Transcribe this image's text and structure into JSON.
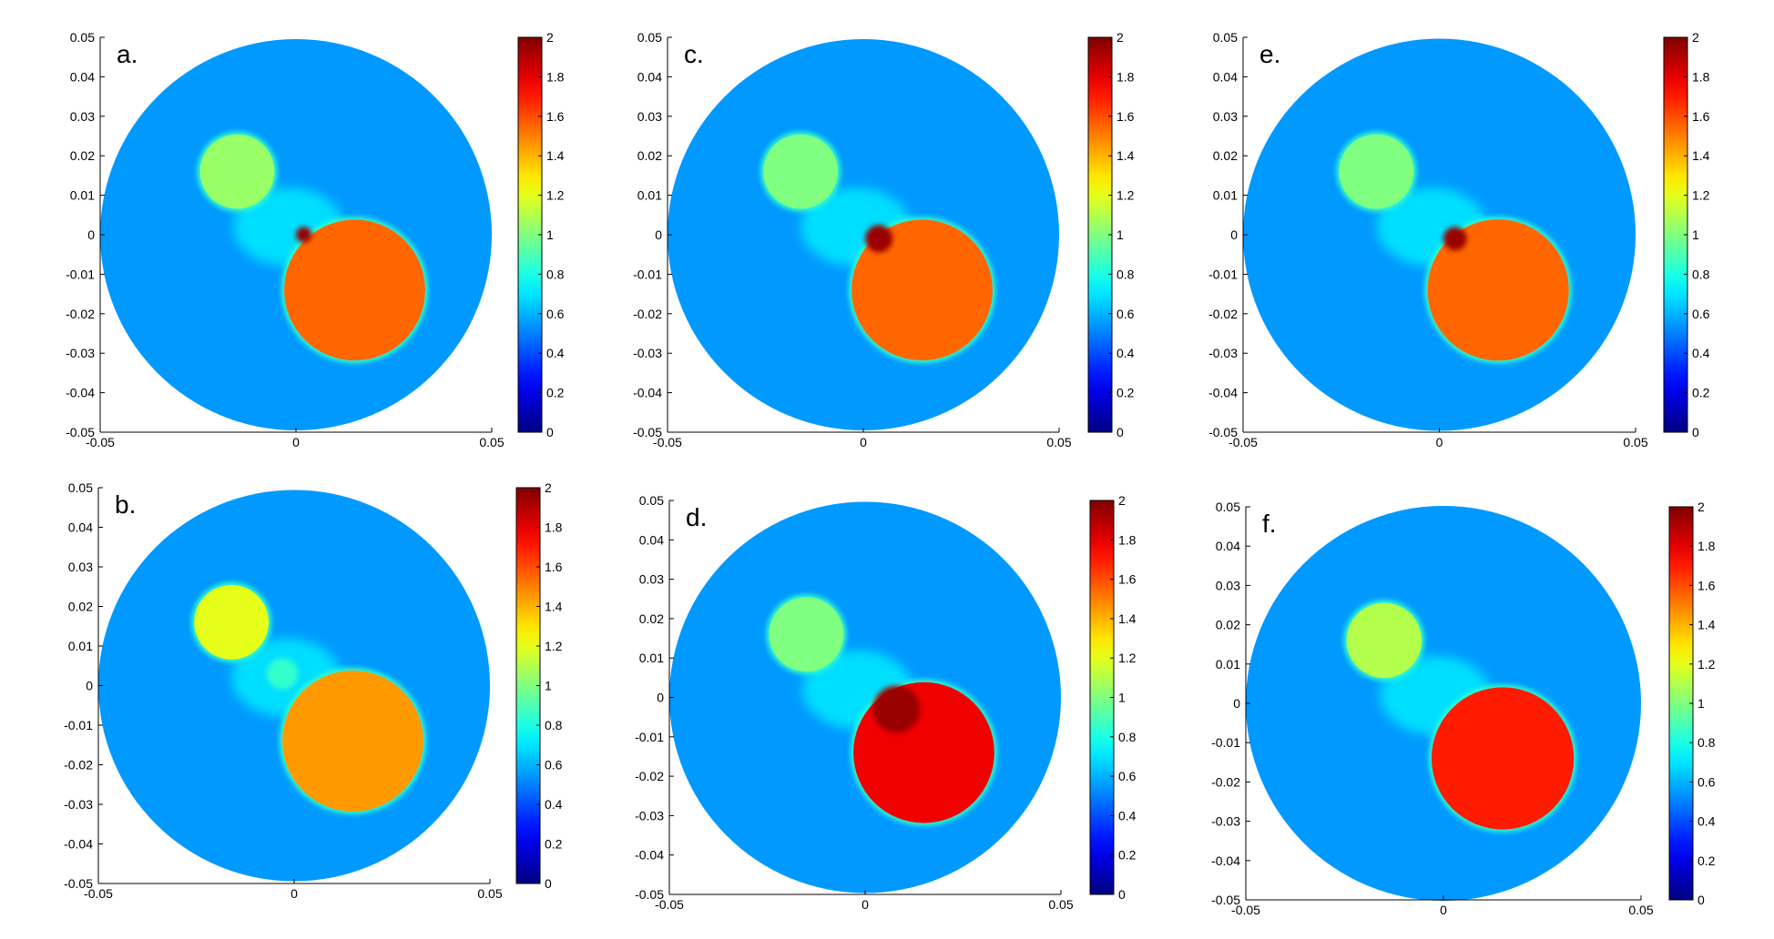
{
  "chart_data": [
    {
      "type": "heatmap",
      "panel_label": "a.",
      "xlim": [
        -0.05,
        0.05
      ],
      "ylim": [
        -0.05,
        0.05
      ],
      "x_ticks": [
        "-0.05",
        "0",
        "0.05"
      ],
      "y_ticks": [
        "0.05",
        "0.04",
        "0.03",
        "0.02",
        "0.01",
        "0",
        "-0.01",
        "-0.02",
        "-0.03",
        "-0.04",
        "-0.05"
      ],
      "colorbar": {
        "min": 0,
        "max": 2,
        "ticks": [
          "2",
          "1.8",
          "1.6",
          "1.4",
          "1.2",
          "1",
          "0.8",
          "0.6",
          "0.4",
          "0.2",
          "0"
        ]
      },
      "background_value": 0.55,
      "inclusions": [
        {
          "cx": -0.015,
          "cy": 0.016,
          "r": 0.0095,
          "value": 1.05
        },
        {
          "cx": 0.015,
          "cy": -0.014,
          "r": 0.018,
          "value": 1.55
        }
      ],
      "artifact": {
        "cx": 0.002,
        "cy": 0.0,
        "r": 0.002,
        "value": 1.95
      }
    },
    {
      "type": "heatmap",
      "panel_label": "b.",
      "xlim": [
        -0.05,
        0.05
      ],
      "ylim": [
        -0.05,
        0.05
      ],
      "x_ticks": [
        "-0.05",
        "0",
        "0.05"
      ],
      "y_ticks": [
        "0.05",
        "0.04",
        "0.03",
        "0.02",
        "0.01",
        "0",
        "-0.01",
        "-0.02",
        "-0.03",
        "-0.04",
        "-0.05"
      ],
      "colorbar": {
        "min": 0,
        "max": 2,
        "ticks": [
          "2",
          "1.8",
          "1.6",
          "1.4",
          "1.2",
          "1",
          "0.8",
          "0.6",
          "0.4",
          "0.2",
          "0"
        ]
      },
      "background_value": 0.55,
      "inclusions": [
        {
          "cx": -0.016,
          "cy": 0.016,
          "r": 0.0095,
          "value": 1.2
        },
        {
          "cx": 0.015,
          "cy": -0.014,
          "r": 0.018,
          "value": 1.45
        }
      ],
      "artifact": {
        "cx": -0.003,
        "cy": 0.003,
        "r": 0.004,
        "value": 0.85
      }
    },
    {
      "type": "heatmap",
      "panel_label": "c.",
      "xlim": [
        -0.05,
        0.05
      ],
      "ylim": [
        -0.05,
        0.05
      ],
      "x_ticks": [
        "-0.05",
        "0",
        "0.05"
      ],
      "y_ticks": [
        "0.05",
        "0.04",
        "0.03",
        "0.02",
        "0.01",
        "0",
        "-0.01",
        "-0.02",
        "-0.03",
        "-0.04",
        "-0.05"
      ],
      "colorbar": {
        "min": 0,
        "max": 2,
        "ticks": [
          "2",
          "1.8",
          "1.6",
          "1.4",
          "1.2",
          "1",
          "0.8",
          "0.6",
          "0.4",
          "0.2",
          "0"
        ]
      },
      "background_value": 0.55,
      "inclusions": [
        {
          "cx": -0.016,
          "cy": 0.016,
          "r": 0.0095,
          "value": 1.0
        },
        {
          "cx": 0.015,
          "cy": -0.014,
          "r": 0.018,
          "value": 1.55
        }
      ],
      "artifact": {
        "cx": 0.004,
        "cy": -0.001,
        "r": 0.0035,
        "value": 1.95
      }
    },
    {
      "type": "heatmap",
      "panel_label": "d.",
      "xlim": [
        -0.05,
        0.05
      ],
      "ylim": [
        -0.05,
        0.05
      ],
      "x_ticks": [
        "-0.05",
        "0",
        "0.05"
      ],
      "y_ticks": [
        "0.05",
        "0.04",
        "0.03",
        "0.02",
        "0.01",
        "0",
        "-0.01",
        "-0.02",
        "-0.03",
        "-0.04",
        "-0.05"
      ],
      "colorbar": {
        "min": 0,
        "max": 2,
        "ticks": [
          "2",
          "1.8",
          "1.6",
          "1.4",
          "1.2",
          "1",
          "0.8",
          "0.6",
          "0.4",
          "0.2",
          "0"
        ]
      },
      "background_value": 0.55,
      "inclusions": [
        {
          "cx": -0.015,
          "cy": 0.016,
          "r": 0.0095,
          "value": 1.0
        },
        {
          "cx": 0.015,
          "cy": -0.014,
          "r": 0.018,
          "value": 1.78
        }
      ],
      "artifact": {
        "cx": 0.008,
        "cy": -0.003,
        "r": 0.006,
        "value": 1.95
      }
    },
    {
      "type": "heatmap",
      "panel_label": "e.",
      "xlim": [
        -0.05,
        0.05
      ],
      "ylim": [
        -0.05,
        0.05
      ],
      "x_ticks": [
        "-0.05",
        "0",
        "0.05"
      ],
      "y_ticks": [
        "0.05",
        "0.04",
        "0.03",
        "0.02",
        "0.01",
        "0",
        "-0.01",
        "-0.02",
        "-0.03",
        "-0.04",
        "-0.05"
      ],
      "colorbar": {
        "min": 0,
        "max": 2,
        "ticks": [
          "2",
          "1.8",
          "1.6",
          "1.4",
          "1.2",
          "1",
          "0.8",
          "0.6",
          "0.4",
          "0.2",
          "0"
        ]
      },
      "background_value": 0.55,
      "inclusions": [
        {
          "cx": -0.016,
          "cy": 0.016,
          "r": 0.0095,
          "value": 1.0
        },
        {
          "cx": 0.015,
          "cy": -0.014,
          "r": 0.018,
          "value": 1.55
        }
      ],
      "artifact": {
        "cx": 0.004,
        "cy": -0.001,
        "r": 0.003,
        "value": 1.95
      }
    },
    {
      "type": "heatmap",
      "panel_label": "f.",
      "xlim": [
        -0.05,
        0.05
      ],
      "ylim": [
        -0.05,
        0.05
      ],
      "x_ticks": [
        "-0.05",
        "0",
        "0.05"
      ],
      "y_ticks": [
        "0.05",
        "0.04",
        "0.03",
        "0.02",
        "0.01",
        "0",
        "-0.01",
        "-0.02",
        "-0.03",
        "-0.04",
        "-0.05"
      ],
      "colorbar": {
        "min": 0,
        "max": 2,
        "ticks": [
          "2",
          "1.8",
          "1.6",
          "1.4",
          "1.2",
          "1",
          "0.8",
          "0.6",
          "0.4",
          "0.2",
          "0"
        ]
      },
      "background_value": 0.55,
      "inclusions": [
        {
          "cx": -0.015,
          "cy": 0.016,
          "r": 0.0095,
          "value": 1.1
        },
        {
          "cx": 0.015,
          "cy": -0.014,
          "r": 0.018,
          "value": 1.7
        }
      ],
      "artifact": null
    }
  ]
}
